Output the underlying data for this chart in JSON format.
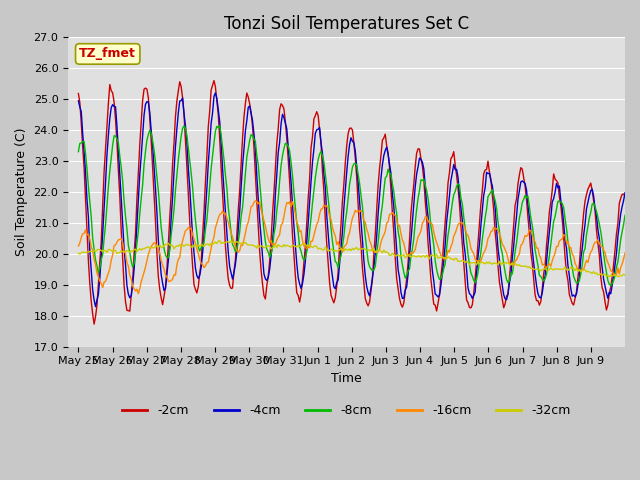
{
  "title": "Tonzi Soil Temperatures Set C",
  "xlabel": "Time",
  "ylabel": "Soil Temperature (C)",
  "ylim": [
    17.0,
    27.0
  ],
  "yticks": [
    17.0,
    18.0,
    19.0,
    20.0,
    21.0,
    22.0,
    23.0,
    24.0,
    25.0,
    26.0,
    27.0
  ],
  "x_tick_labels": [
    "May 25",
    "May 26",
    "May 27",
    "May 28",
    "May 29",
    "May 30",
    "May 31",
    "Jun 1",
    "Jun 2",
    "Jun 3",
    "Jun 4",
    "Jun 5",
    "Jun 6",
    "Jun 7",
    "Jun 8",
    "Jun 9"
  ],
  "annotation_text": "TZ_fmet",
  "colors": {
    "-2cm": "#cc0000",
    "-4cm": "#0000cc",
    "-8cm": "#00bb00",
    "-16cm": "#ff8800",
    "-32cm": "#cccc00"
  },
  "legend_labels": [
    "-2cm",
    "-4cm",
    "-8cm",
    "-16cm",
    "-32cm"
  ],
  "bg_color": "#e8e8e8",
  "title_fontsize": 12,
  "label_fontsize": 9,
  "tick_fontsize": 8
}
